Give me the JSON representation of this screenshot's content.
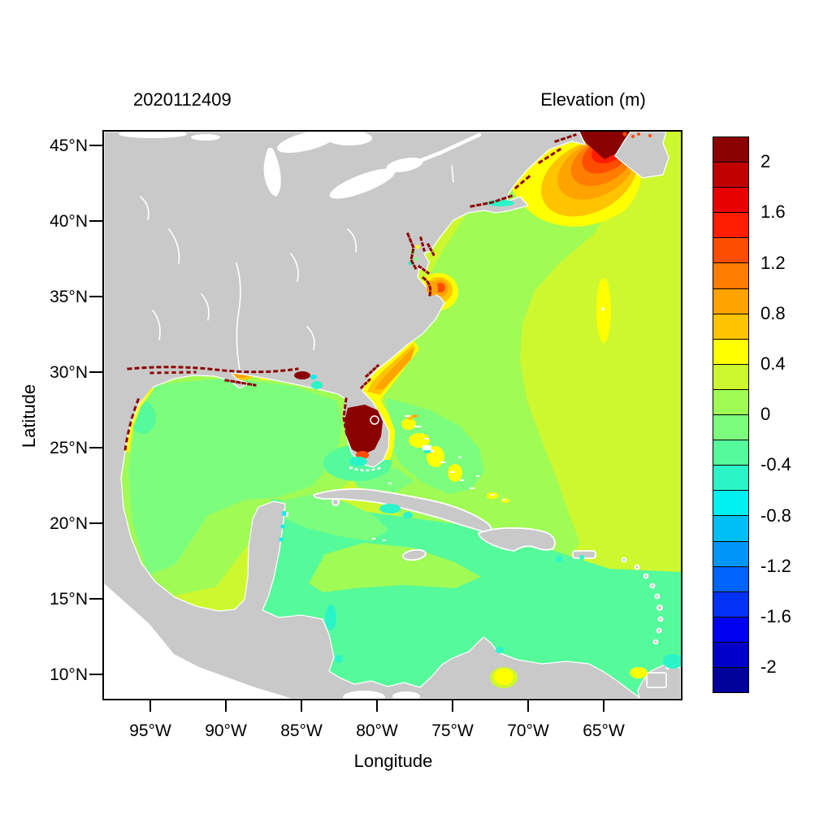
{
  "figure": {
    "title": "2020112409",
    "colorbar_title": "Elevation (m)"
  },
  "axes": {
    "xlabel": "Longitude",
    "ylabel": "Latitude",
    "x_tick_labels": [
      "95°W",
      "90°W",
      "85°W",
      "80°W",
      "75°W",
      "70°W",
      "65°W"
    ],
    "y_tick_labels": [
      "45°N",
      "40°N",
      "35°N",
      "30°N",
      "25°N",
      "20°N",
      "15°N",
      "10°N"
    ]
  },
  "colorbar": {
    "labels": [
      "2",
      "1.6",
      "1.2",
      "0.8",
      "0.4",
      "0",
      "-0.4",
      "-0.8",
      "-1.2",
      "-1.6",
      "-2"
    ],
    "colors_top_to_bottom": [
      "#8B0000",
      "#C00000",
      "#E80000",
      "#FF1C00",
      "#FF4D00",
      "#FF7D00",
      "#FFA300",
      "#FFC400",
      "#FFFF00",
      "#CDF82F",
      "#A0FB55",
      "#7DFD7D",
      "#55FA9B",
      "#2BF5C8",
      "#00EFEF",
      "#00BFF7",
      "#0096F7",
      "#0063FA",
      "#0432F7",
      "#0000F0",
      "#0000C8",
      "#00009B"
    ]
  },
  "palette": {
    "land": "#C9C9C9",
    "outside_domain": "#FFFFFF",
    "frame": "#000000",
    "text": "#000000"
  },
  "chart_data": {
    "type": "heatmap",
    "subtype": "filled-contour geographic map",
    "title": "2020112409",
    "colorbar_title": "Elevation (m)",
    "xlabel": "Longitude",
    "ylabel": "Latitude",
    "x_ticks": [
      "95°W",
      "90°W",
      "85°W",
      "80°W",
      "75°W",
      "70°W",
      "65°W"
    ],
    "y_ticks": [
      "45°N",
      "40°N",
      "35°N",
      "30°N",
      "25°N",
      "20°N",
      "15°N",
      "10°N"
    ],
    "xlim_deg_lon": [
      -98.1,
      -59.9
    ],
    "ylim_deg_lat": [
      8.4,
      45.9
    ],
    "levels_m": [
      -2,
      -1.8,
      -1.6,
      -1.4,
      -1.2,
      -1,
      -0.8,
      -0.6,
      -0.4,
      -0.2,
      0,
      0.2,
      0.4,
      0.6,
      0.8,
      1,
      1.2,
      1.4,
      1.6,
      1.8,
      2
    ],
    "grid": false,
    "legend_position": "colorbar right",
    "regions": [
      {
        "area": "Bay of Fundy / Gulf of Maine",
        "elevation_m": "concentric bands 0.4 to >2, peak >2 at head of Bay of Fundy"
      },
      {
        "area": "Southwest Florida / Everglades coast",
        "elevation_m": "> 2"
      },
      {
        "area": "US East Coast estuaries (New England, Chesapeake, Carolina sounds)",
        "elevation_m": "> 2 speckles"
      },
      {
        "area": "Pamlico Sound, North Carolina",
        "elevation_m": "0.8 to 1.4 spot"
      },
      {
        "area": "Georgia / South Carolina shelf",
        "elevation_m": "0.6 to 1.0 band"
      },
      {
        "area": "Louisiana / Mississippi coast",
        "elevation_m": "0.4 to 1.0 patches with >2 speckles"
      },
      {
        "area": "Eastern open Atlantic",
        "elevation_m": "0.2 to 0.4"
      },
      {
        "area": "Western Atlantic / Sargasso",
        "elevation_m": "0 to 0.2"
      },
      {
        "area": "Bermuda patch",
        "elevation_m": "0.4 to 0.6"
      },
      {
        "area": "Bahama Banks",
        "elevation_m": "0.4 to 0.6 patches"
      },
      {
        "area": "Gulf of Mexico interior",
        "elevation_m": "-0.2 to 0"
      },
      {
        "area": "Caribbean Sea",
        "elevation_m": "-0.4 to -0.2"
      },
      {
        "area": "South Cuba, Nicaragua coast, Florida Bay, Big Bend FL",
        "elevation_m": "-0.8 to -0.4 patches"
      },
      {
        "area": "Venezuela coast (Margarita)",
        "elevation_m": "0.4 to 0.6 patch"
      }
    ]
  }
}
